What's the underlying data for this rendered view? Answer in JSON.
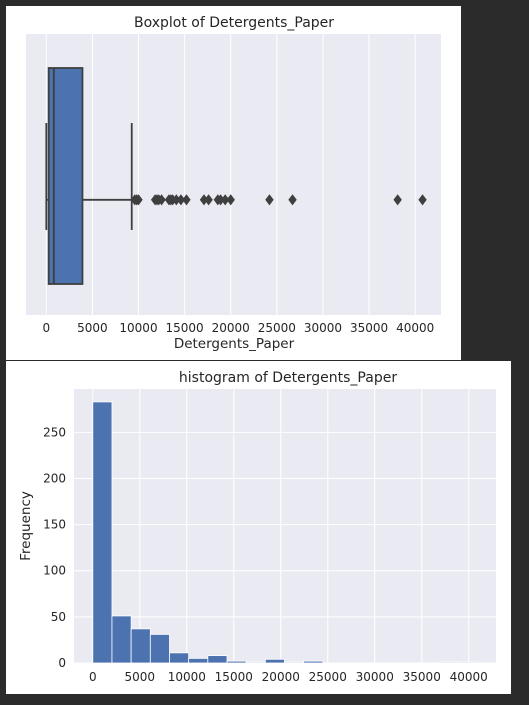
{
  "chart_data": [
    {
      "type": "box",
      "title": "Boxplot of Detergents_Paper",
      "xlabel": "Detergents_Paper",
      "ylabel": "",
      "xlim": [
        -2200,
        42800
      ],
      "xticks": [
        0,
        5000,
        10000,
        15000,
        20000,
        25000,
        30000,
        35000,
        40000
      ],
      "xticklabels": [
        "0",
        "5000",
        "10000",
        "15000",
        "20000",
        "25000",
        "30000",
        "35000",
        "40000"
      ],
      "grid": true,
      "box": {
        "whisker_low": 3,
        "q1": 257,
        "median": 816,
        "q3": 3922,
        "whisker_high": 9265
      },
      "outliers": [
        9600,
        9800,
        10000,
        11800,
        12000,
        12200,
        12500,
        13300,
        13500,
        13700,
        14100,
        14600,
        15200,
        17100,
        17600,
        18600,
        18900,
        19400,
        20000,
        24200,
        26700,
        38100,
        40800
      ],
      "color": "#4c72b0",
      "background": "#eaeaf2"
    },
    {
      "type": "bar",
      "title": "histogram of Detergents_Paper",
      "xlabel": "",
      "ylabel": "Frequency",
      "bin_start": 0,
      "bin_width": 2040,
      "values": [
        283,
        51,
        37,
        31,
        11,
        5,
        8,
        2,
        1,
        4,
        1,
        2,
        0,
        0,
        0,
        0,
        0,
        0,
        1,
        1
      ],
      "xlim": [
        -2000,
        42900
      ],
      "ylim": [
        0,
        297
      ],
      "xticks": [
        0,
        5000,
        10000,
        15000,
        20000,
        25000,
        30000,
        35000,
        40000
      ],
      "xticklabels": [
        "0",
        "5000",
        "10000",
        "15000",
        "20000",
        "25000",
        "30000",
        "35000",
        "40000"
      ],
      "yticks": [
        0,
        50,
        100,
        150,
        200,
        250
      ],
      "yticklabels": [
        "0",
        "50",
        "100",
        "150",
        "200",
        "250"
      ],
      "grid": true,
      "color": "#4c72b0",
      "background": "#eaeaf2"
    }
  ]
}
